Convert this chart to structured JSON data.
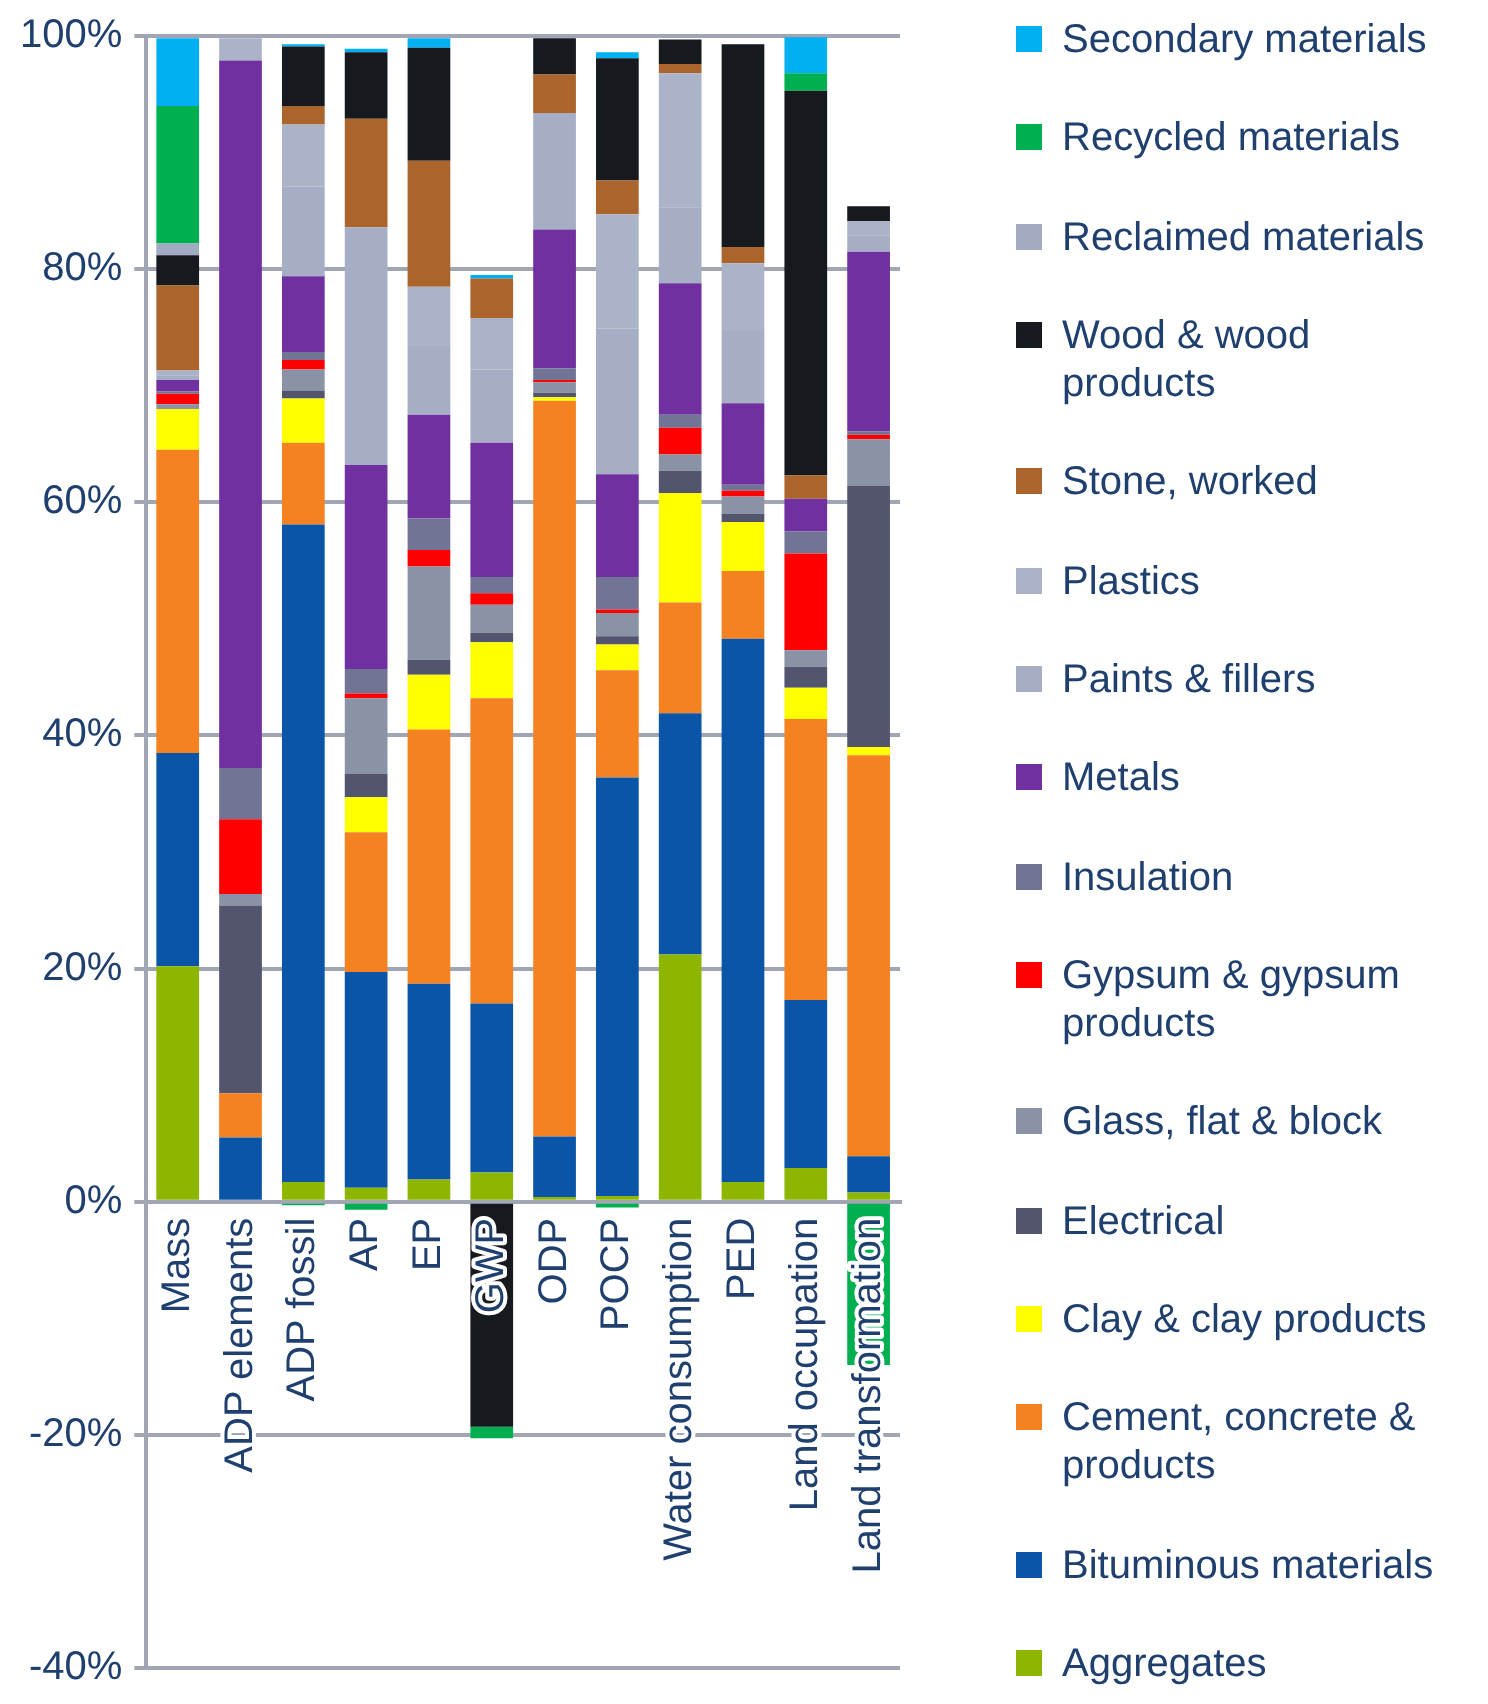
{
  "chart_data": {
    "type": "bar",
    "stacked": true,
    "grid": "y",
    "legend": "right",
    "categories": [
      "Mass",
      "ADP elements",
      "ADP fossil",
      "AP",
      "EP",
      "GWP",
      "ODP",
      "POCP",
      "Water consumption",
      "PED",
      "Land occupation",
      "Land transformation"
    ],
    "ylim": [
      -40,
      100
    ],
    "yticks": [
      {
        "value": -40,
        "label": "-40%"
      },
      {
        "value": -20,
        "label": "-20%"
      },
      {
        "value": 0,
        "label": "0%"
      },
      {
        "value": 20,
        "label": "20%"
      },
      {
        "value": 40,
        "label": "40%"
      },
      {
        "value": 60,
        "label": "60%"
      },
      {
        "value": 80,
        "label": "80%"
      },
      {
        "value": 100,
        "label": "100%"
      }
    ],
    "series": [
      {
        "name": "Aggregates",
        "color": "#8db600",
        "values": [
          20.2,
          0,
          1.7,
          1.2,
          1.9,
          2.5,
          0.4,
          0.5,
          21.2,
          1.7,
          2.9,
          0.8
        ]
      },
      {
        "name": "Bituminous materials",
        "color": "#0b55a8",
        "values": [
          18.3,
          5.5,
          56.4,
          18.5,
          16.8,
          14.5,
          5.2,
          35.9,
          20.7,
          46.6,
          14.4,
          3.1
        ]
      },
      {
        "name": "Cement, concrete & products",
        "color": "#f58220",
        "values": [
          26.0,
          3.8,
          7.0,
          12.0,
          21.8,
          26.2,
          63.1,
          9.2,
          9.5,
          5.8,
          24.1,
          34.4
        ]
      },
      {
        "name": "Clay & clay products",
        "color": "#ffff00",
        "values": [
          3.5,
          0,
          3.8,
          3.0,
          4.7,
          4.8,
          0.3,
          2.2,
          9.4,
          4.2,
          2.7,
          0.7
        ]
      },
      {
        "name": "Electrical",
        "color": "#53546e",
        "values": [
          0,
          16.1,
          0.7,
          2.0,
          1.3,
          0.8,
          0.4,
          0.7,
          1.9,
          0.7,
          1.8,
          22.4
        ]
      },
      {
        "name": "Glass, flat & block",
        "color": "#8a93a6",
        "values": [
          0.4,
          1.0,
          1.8,
          6.5,
          8.0,
          2.4,
          0.9,
          2.0,
          1.4,
          1.5,
          1.4,
          4.0
        ]
      },
      {
        "name": "Gypsum & gypsum products",
        "color": "#ff0000",
        "values": [
          0.9,
          6.4,
          0.8,
          0.4,
          1.4,
          1.0,
          0.2,
          0.3,
          2.3,
          0.5,
          8.3,
          0.4
        ]
      },
      {
        "name": "Insulation",
        "color": "#727496",
        "values": [
          0.2,
          4.4,
          0.7,
          2.1,
          2.7,
          1.4,
          1.0,
          2.8,
          1.1,
          0.5,
          1.9,
          0.3
        ]
      },
      {
        "name": "Metals",
        "color": "#7030a0",
        "values": [
          1.0,
          60.7,
          6.5,
          17.5,
          8.9,
          11.5,
          11.9,
          8.8,
          11.3,
          7.0,
          2.8,
          15.4
        ]
      },
      {
        "name": "Paints & fillers",
        "color": "#a5aec4",
        "values": [
          0.4,
          0,
          7.7,
          20.4,
          5.9,
          6.3,
          10.0,
          12.5,
          6.5,
          6.2,
          0,
          1.4
        ]
      },
      {
        "name": "Plastics",
        "color": "#aab3c8",
        "values": [
          0.4,
          1.9,
          5.3,
          0,
          5.1,
          4.4,
          0,
          9.8,
          11.5,
          5.8,
          0,
          1.2
        ]
      },
      {
        "name": "Stone, worked",
        "color": "#ab642b",
        "values": [
          7.3,
          0,
          1.6,
          9.3,
          10.8,
          3.4,
          3.3,
          2.9,
          0.8,
          1.4,
          2.0,
          0
        ]
      },
      {
        "name": "Wood & wood products",
        "color": "#16191e",
        "values": [
          2.6,
          0,
          5.1,
          5.7,
          9.7,
          -19.3,
          3.1,
          10.5,
          2.1,
          17.4,
          33.0,
          1.3
        ]
      },
      {
        "name": "Reclaimed materials",
        "color": "#a2abc2",
        "values": [
          1.0,
          0,
          0,
          0,
          0,
          0,
          0,
          0,
          0,
          0,
          0,
          0
        ]
      },
      {
        "name": "Recycled materials",
        "color": "#00b050",
        "values": [
          11.8,
          0,
          -0.3,
          -0.7,
          0,
          -1.0,
          0,
          -0.5,
          0,
          0,
          1.5,
          -14.0
        ]
      },
      {
        "name": "Secondary materials",
        "color": "#00b0f0",
        "values": [
          5.8,
          0,
          0.2,
          0.3,
          0.8,
          0.3,
          0,
          0.5,
          0,
          0,
          3.1,
          0
        ]
      }
    ]
  }
}
